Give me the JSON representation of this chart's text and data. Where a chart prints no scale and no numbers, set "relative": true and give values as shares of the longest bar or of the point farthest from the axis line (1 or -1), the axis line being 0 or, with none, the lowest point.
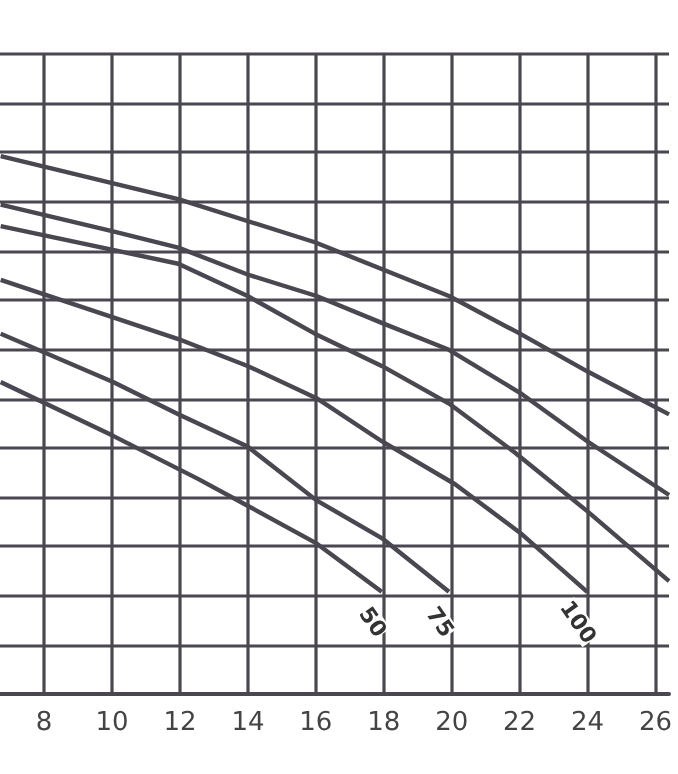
{
  "chart_data": {
    "type": "line",
    "relative": true,
    "xlim": [
      6.7,
      26.4
    ],
    "xticks": [
      8,
      10,
      12,
      14,
      16,
      18,
      20,
      22,
      24,
      26
    ],
    "grid": true,
    "legend": false,
    "marker": "none",
    "line_style": "solid",
    "tick_labels": "x",
    "series": [
      {
        "color": "#4a4750",
        "x": [
          6.72,
          11.95,
          15.97,
          19.92,
          22.01,
          23.99,
          26.4
        ],
        "values": [
          1.0,
          0.92,
          0.84,
          0.74,
          0.67,
          0.6,
          0.52
        ]
      },
      {
        "color": "#4a4750",
        "x": [
          6.72,
          10.03,
          11.95,
          13.99,
          16.02,
          17.94,
          19.92,
          22.01,
          23.99,
          26.4
        ],
        "values": [
          0.91,
          0.86,
          0.83,
          0.78,
          0.74,
          0.69,
          0.64,
          0.56,
          0.47,
          0.37
        ]
      },
      {
        "color": "#4a4750",
        "x": [
          6.72,
          11.95,
          13.99,
          15.97,
          17.94,
          19.92,
          21.84,
          23.99,
          26.4
        ],
        "values": [
          0.87,
          0.8,
          0.74,
          0.67,
          0.61,
          0.54,
          0.45,
          0.34,
          0.21
        ]
      },
      {
        "name": "100",
        "color": "#4a4750",
        "x": [
          6.72,
          11.95,
          13.99,
          16.02,
          17.94,
          20.1,
          22.01,
          23.99
        ],
        "values": [
          0.77,
          0.66,
          0.61,
          0.55,
          0.47,
          0.39,
          0.3,
          0.19
        ]
      },
      {
        "name": "75",
        "color": "#4a4750",
        "x": [
          6.72,
          10.03,
          11.95,
          13.99,
          16.02,
          17.94,
          19.92
        ],
        "values": [
          0.67,
          0.58,
          0.52,
          0.46,
          0.36,
          0.29,
          0.19
        ]
      },
      {
        "name": "50",
        "color": "#4a4750",
        "x": [
          6.72,
          10.03,
          12.53,
          13.99,
          16.02,
          17.94
        ],
        "values": [
          0.58,
          0.48,
          0.4,
          0.35,
          0.28,
          0.19
        ]
      }
    ]
  }
}
